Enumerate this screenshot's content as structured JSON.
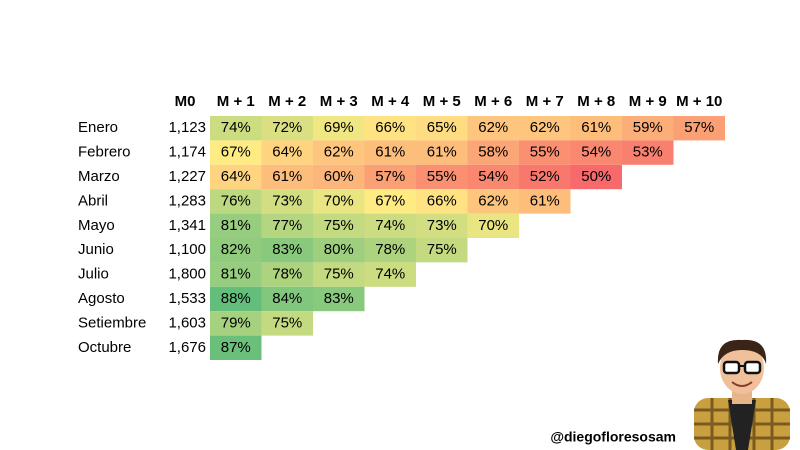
{
  "chart_data": {
    "type": "heatmap",
    "columns": [
      "M + 1",
      "M + 2",
      "M + 3",
      "M + 4",
      "M + 5",
      "M + 6",
      "M + 7",
      "M + 8",
      "M + 9",
      "M + 10"
    ],
    "rows": [
      "Enero",
      "Febrero",
      "Marzo",
      "Abril",
      "Mayo",
      "Junio",
      "Julio",
      "Agosto",
      "Setiembre",
      "Octubre"
    ],
    "m0": {
      "label": "M0",
      "values": [
        1123,
        1174,
        1227,
        1283,
        1341,
        1100,
        1800,
        1533,
        1603,
        1676
      ],
      "value_labels": [
        "1,123",
        "1,174",
        "1,227",
        "1,283",
        "1,341",
        "1,100",
        "1,800",
        "1,533",
        "1,603",
        "1,676"
      ]
    },
    "values": [
      [
        74,
        72,
        69,
        66,
        65,
        62,
        62,
        61,
        59,
        57
      ],
      [
        67,
        64,
        62,
        61,
        61,
        58,
        55,
        54,
        53
      ],
      [
        64,
        61,
        60,
        57,
        55,
        54,
        52,
        50
      ],
      [
        76,
        73,
        70,
        67,
        66,
        62,
        61
      ],
      [
        81,
        77,
        75,
        74,
        73,
        70
      ],
      [
        82,
        83,
        80,
        78,
        75
      ],
      [
        81,
        78,
        75,
        74
      ],
      [
        88,
        84,
        83
      ],
      [
        79,
        75
      ],
      [
        87
      ]
    ],
    "value_labels": [
      [
        "74%",
        "72%",
        "69%",
        "66%",
        "65%",
        "62%",
        "62%",
        "61%",
        "59%",
        "57%"
      ],
      [
        "67%",
        "64%",
        "62%",
        "61%",
        "61%",
        "58%",
        "55%",
        "54%",
        "53%"
      ],
      [
        "64%",
        "61%",
        "60%",
        "57%",
        "55%",
        "54%",
        "52%",
        "50%"
      ],
      [
        "76%",
        "73%",
        "70%",
        "67%",
        "66%",
        "62%",
        "61%"
      ],
      [
        "81%",
        "77%",
        "75%",
        "74%",
        "73%",
        "70%"
      ],
      [
        "82%",
        "83%",
        "80%",
        "78%",
        "75%"
      ],
      [
        "81%",
        "78%",
        "75%",
        "74%"
      ],
      [
        "88%",
        "84%",
        "83%"
      ],
      [
        "79%",
        "75%"
      ],
      [
        "87%"
      ]
    ],
    "color_scale": {
      "min_color": "#f8696b",
      "mid_color": "#ffeb84",
      "max_color": "#63be7b"
    },
    "credit": "@diegofloresosam"
  }
}
